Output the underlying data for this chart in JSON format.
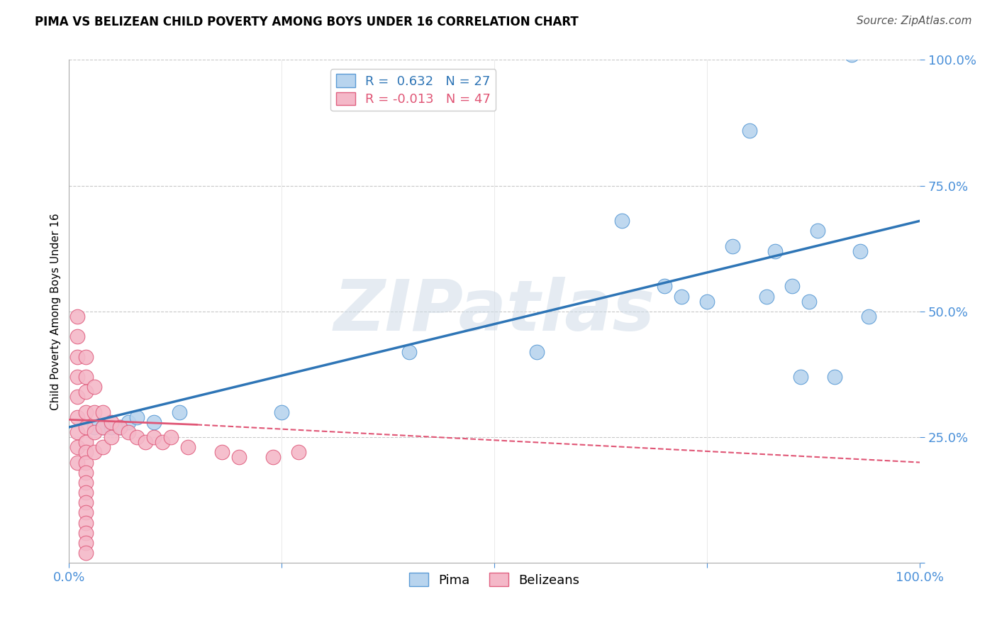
{
  "title": "PIMA VS BELIZEAN CHILD POVERTY AMONG BOYS UNDER 16 CORRELATION CHART",
  "source": "Source: ZipAtlas.com",
  "ylabel": "Child Poverty Among Boys Under 16",
  "xlim": [
    0.0,
    1.0
  ],
  "ylim": [
    0.0,
    1.0
  ],
  "pima_R": 0.632,
  "pima_N": 27,
  "belizean_R": -0.013,
  "belizean_N": 47,
  "pima_color": "#b8d4ee",
  "pima_edge_color": "#5b9bd5",
  "pima_line_color": "#2e75b6",
  "belizean_color": "#f4b8c8",
  "belizean_edge_color": "#e06080",
  "belizean_line_color": "#e05575",
  "watermark": "ZIPatlas",
  "pima_x": [
    0.03,
    0.04,
    0.05,
    0.06,
    0.07,
    0.08,
    0.1,
    0.13,
    0.25,
    0.4,
    0.55,
    0.65,
    0.7,
    0.72,
    0.75,
    0.78,
    0.8,
    0.82,
    0.83,
    0.85,
    0.86,
    0.87,
    0.88,
    0.9,
    0.92,
    0.93,
    0.94
  ],
  "pima_y": [
    0.27,
    0.27,
    0.27,
    0.27,
    0.28,
    0.29,
    0.28,
    0.3,
    0.3,
    0.42,
    0.42,
    0.68,
    0.55,
    0.53,
    0.52,
    0.63,
    0.86,
    0.53,
    0.62,
    0.55,
    0.37,
    0.52,
    0.66,
    0.37,
    1.01,
    0.62,
    0.49
  ],
  "belizean_x": [
    0.01,
    0.01,
    0.01,
    0.01,
    0.01,
    0.01,
    0.01,
    0.01,
    0.01,
    0.02,
    0.02,
    0.02,
    0.02,
    0.02,
    0.02,
    0.02,
    0.02,
    0.02,
    0.02,
    0.02,
    0.02,
    0.02,
    0.02,
    0.02,
    0.02,
    0.02,
    0.03,
    0.03,
    0.03,
    0.03,
    0.04,
    0.04,
    0.04,
    0.05,
    0.05,
    0.06,
    0.07,
    0.08,
    0.09,
    0.1,
    0.11,
    0.12,
    0.14,
    0.18,
    0.2,
    0.24,
    0.27
  ],
  "belizean_y": [
    0.49,
    0.45,
    0.41,
    0.37,
    0.33,
    0.29,
    0.26,
    0.23,
    0.2,
    0.41,
    0.37,
    0.34,
    0.3,
    0.27,
    0.24,
    0.22,
    0.2,
    0.18,
    0.16,
    0.14,
    0.12,
    0.1,
    0.08,
    0.06,
    0.04,
    0.02,
    0.35,
    0.3,
    0.26,
    0.22,
    0.3,
    0.27,
    0.23,
    0.28,
    0.25,
    0.27,
    0.26,
    0.25,
    0.24,
    0.25,
    0.24,
    0.25,
    0.23,
    0.22,
    0.21,
    0.21,
    0.22
  ],
  "pima_line_x0": 0.0,
  "pima_line_x1": 1.0,
  "pima_line_y0": 0.27,
  "pima_line_y1": 0.68,
  "bel_line_x0": 0.0,
  "bel_line_x1": 0.15,
  "bel_line_xd0": 0.15,
  "bel_line_xd1": 1.0,
  "bel_line_y0": 0.285,
  "bel_line_y1": 0.275,
  "bel_line_yd0": 0.275,
  "bel_line_yd1": 0.2
}
